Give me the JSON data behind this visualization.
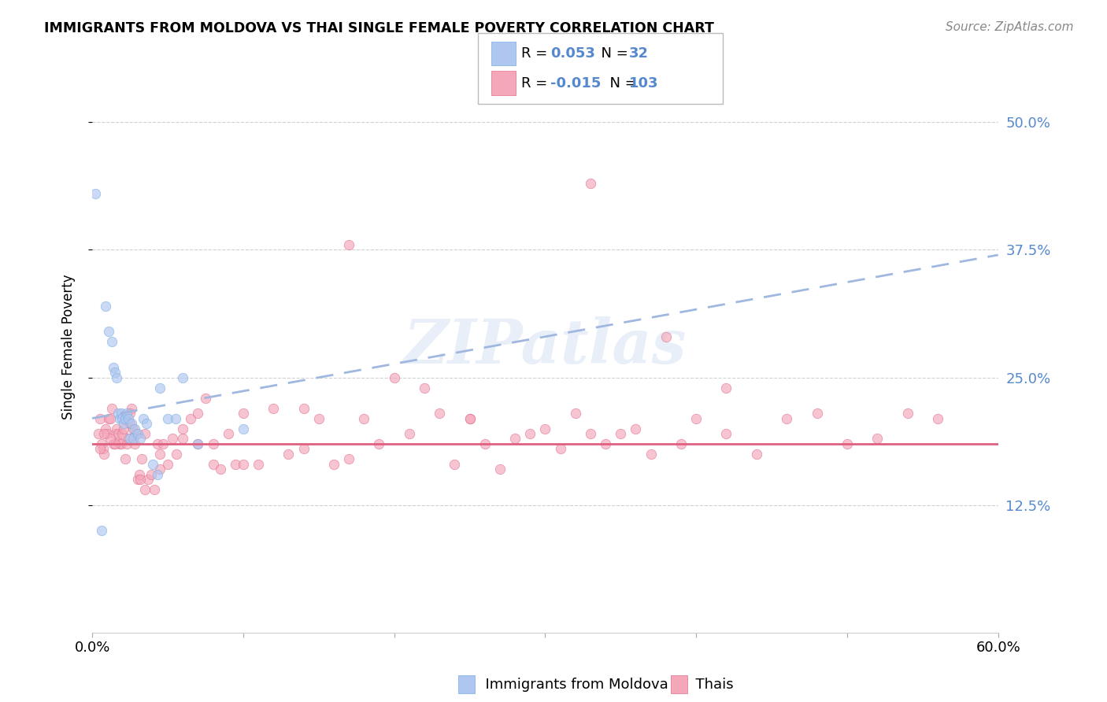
{
  "title": "IMMIGRANTS FROM MOLDOVA VS THAI SINGLE FEMALE POVERTY CORRELATION CHART",
  "source": "Source: ZipAtlas.com",
  "ylabel": "Single Female Poverty",
  "ytick_labels": [
    "12.5%",
    "25.0%",
    "37.5%",
    "50.0%"
  ],
  "ytick_values": [
    0.125,
    0.25,
    0.375,
    0.5
  ],
  "xlim": [
    0.0,
    0.6
  ],
  "ylim": [
    0.0,
    0.56
  ],
  "legend_moldova_R": "0.053",
  "legend_moldova_N": "32",
  "legend_thai_R": "-0.015",
  "legend_thai_N": "103",
  "mol_color": "#aec6f0",
  "mol_edge": "#7baee0",
  "thai_color": "#f4a7b9",
  "thai_edge": "#e07090",
  "mol_line_color": "#a0b8e0",
  "thai_line_color": "#e06080",
  "trendline_mol_x0": 0.0,
  "trendline_mol_y0": 0.21,
  "trendline_mol_x1": 0.6,
  "trendline_mol_y1": 0.37,
  "trendline_thai_x0": 0.0,
  "trendline_thai_y0": 0.185,
  "trendline_thai_x1": 0.6,
  "trendline_thai_y1": 0.185,
  "watermark": "ZIPatlas",
  "background_color": "#ffffff",
  "grid_color": "#cccccc",
  "ytick_color": "#5588cc",
  "scatter_size": 80,
  "scatter_alpha": 0.65,
  "mol_x": [
    0.002,
    0.006,
    0.009,
    0.011,
    0.013,
    0.014,
    0.015,
    0.016,
    0.017,
    0.018,
    0.019,
    0.02,
    0.021,
    0.022,
    0.023,
    0.024,
    0.025,
    0.026,
    0.027,
    0.028,
    0.03,
    0.032,
    0.034,
    0.036,
    0.04,
    0.043,
    0.045,
    0.05,
    0.055,
    0.06,
    0.07,
    0.1
  ],
  "mol_y": [
    0.43,
    0.1,
    0.32,
    0.295,
    0.285,
    0.26,
    0.255,
    0.25,
    0.215,
    0.21,
    0.215,
    0.21,
    0.205,
    0.21,
    0.215,
    0.21,
    0.19,
    0.205,
    0.19,
    0.2,
    0.195,
    0.19,
    0.21,
    0.205,
    0.165,
    0.155,
    0.24,
    0.21,
    0.21,
    0.25,
    0.185,
    0.2
  ],
  "thai_x": [
    0.004,
    0.005,
    0.006,
    0.007,
    0.008,
    0.009,
    0.01,
    0.011,
    0.012,
    0.013,
    0.014,
    0.015,
    0.016,
    0.017,
    0.018,
    0.019,
    0.02,
    0.021,
    0.022,
    0.023,
    0.024,
    0.025,
    0.026,
    0.027,
    0.028,
    0.029,
    0.03,
    0.031,
    0.033,
    0.035,
    0.037,
    0.039,
    0.041,
    0.043,
    0.045,
    0.047,
    0.05,
    0.053,
    0.056,
    0.06,
    0.065,
    0.07,
    0.075,
    0.08,
    0.085,
    0.09,
    0.095,
    0.1,
    0.11,
    0.12,
    0.13,
    0.14,
    0.15,
    0.16,
    0.17,
    0.18,
    0.19,
    0.2,
    0.21,
    0.22,
    0.23,
    0.24,
    0.25,
    0.26,
    0.27,
    0.28,
    0.29,
    0.3,
    0.31,
    0.32,
    0.33,
    0.34,
    0.35,
    0.36,
    0.37,
    0.38,
    0.39,
    0.4,
    0.42,
    0.44,
    0.46,
    0.48,
    0.5,
    0.52,
    0.54,
    0.56,
    0.33,
    0.42,
    0.17,
    0.25,
    0.1,
    0.14,
    0.06,
    0.07,
    0.08,
    0.035,
    0.025,
    0.015,
    0.012,
    0.008,
    0.005,
    0.032,
    0.045
  ],
  "thai_y": [
    0.195,
    0.21,
    0.185,
    0.18,
    0.175,
    0.2,
    0.195,
    0.21,
    0.21,
    0.22,
    0.185,
    0.195,
    0.2,
    0.195,
    0.185,
    0.185,
    0.195,
    0.2,
    0.17,
    0.185,
    0.19,
    0.205,
    0.22,
    0.2,
    0.185,
    0.195,
    0.15,
    0.155,
    0.17,
    0.14,
    0.15,
    0.155,
    0.14,
    0.185,
    0.175,
    0.185,
    0.165,
    0.19,
    0.175,
    0.2,
    0.21,
    0.185,
    0.23,
    0.165,
    0.16,
    0.195,
    0.165,
    0.215,
    0.165,
    0.22,
    0.175,
    0.18,
    0.21,
    0.165,
    0.17,
    0.21,
    0.185,
    0.25,
    0.195,
    0.24,
    0.215,
    0.165,
    0.21,
    0.185,
    0.16,
    0.19,
    0.195,
    0.2,
    0.18,
    0.215,
    0.44,
    0.185,
    0.195,
    0.2,
    0.175,
    0.29,
    0.185,
    0.21,
    0.195,
    0.175,
    0.21,
    0.215,
    0.185,
    0.19,
    0.215,
    0.21,
    0.195,
    0.24,
    0.38,
    0.21,
    0.165,
    0.22,
    0.19,
    0.215,
    0.185,
    0.195,
    0.215,
    0.185,
    0.19,
    0.195,
    0.18,
    0.15,
    0.16
  ]
}
